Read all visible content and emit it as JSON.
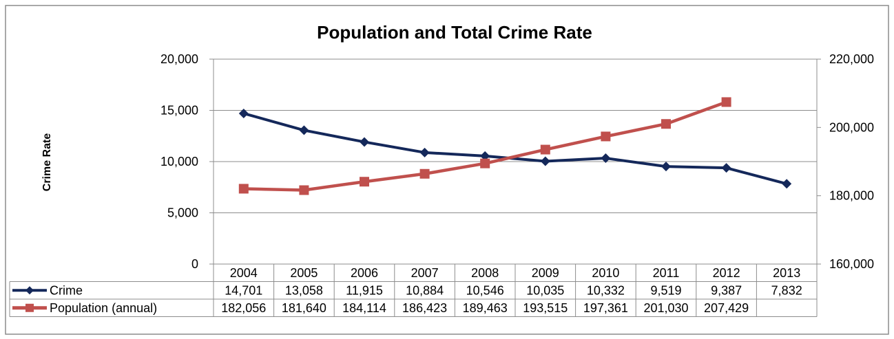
{
  "chart_data": {
    "type": "line",
    "title": "Population and Total Crime Rate",
    "ylabel": "Crime Rate",
    "y2label": "",
    "categories": [
      "2004",
      "2005",
      "2006",
      "2007",
      "2008",
      "2009",
      "2010",
      "2011",
      "2012",
      "2013"
    ],
    "ylim": [
      0,
      20000
    ],
    "y2lim": [
      160000,
      220000
    ],
    "yticks": [
      "0",
      "5,000",
      "10,000",
      "15,000",
      "20,000"
    ],
    "y2ticks": [
      "160,000",
      "180,000",
      "200,000",
      "220,000"
    ],
    "grid": true,
    "legend": "data-table",
    "series": [
      {
        "name": "Crime",
        "axis": "left",
        "color": "#14285a",
        "marker": "diamond",
        "values": [
          14701,
          13058,
          11915,
          10884,
          10546,
          10035,
          10332,
          9519,
          9387,
          7832
        ],
        "labels": [
          "14,701",
          "13,058",
          "11,915",
          "10,884",
          "10,546",
          "10,035",
          "10,332",
          "9,519",
          "9,387",
          "7,832"
        ]
      },
      {
        "name": "Population (annual)",
        "axis": "right",
        "color": "#c0504d",
        "marker": "square",
        "values": [
          182056,
          181640,
          184114,
          186423,
          189463,
          193515,
          197361,
          201030,
          207429,
          null
        ],
        "labels": [
          "182,056",
          "181,640",
          "184,114",
          "186,423",
          "189,463",
          "193,515",
          "197,361",
          "201,030",
          "207,429",
          ""
        ]
      }
    ]
  }
}
